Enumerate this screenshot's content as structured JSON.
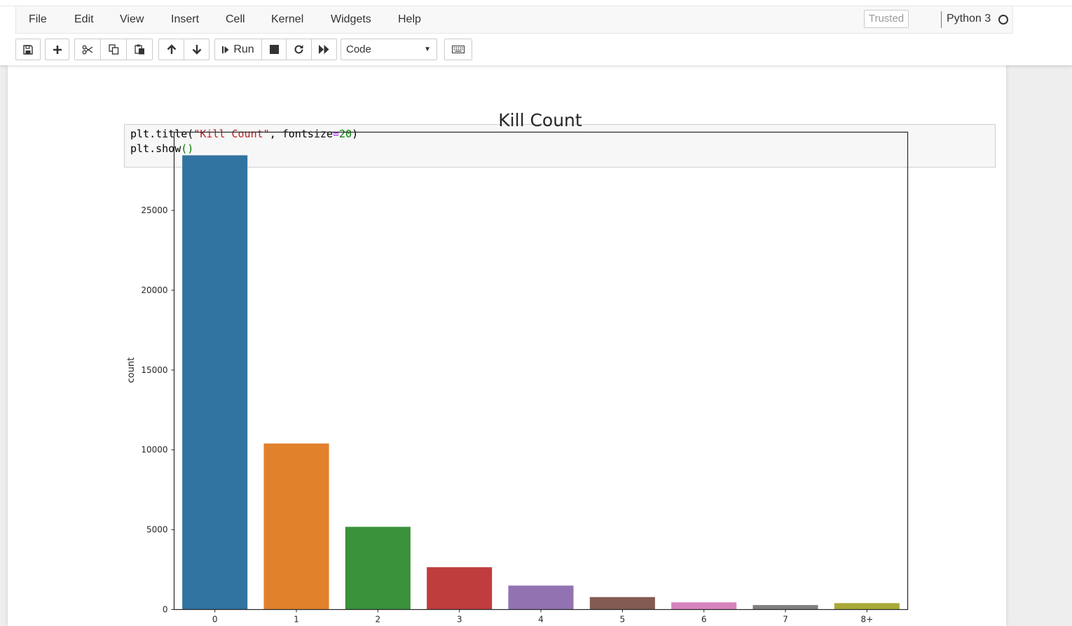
{
  "menubar": {
    "items": [
      "File",
      "Edit",
      "View",
      "Insert",
      "Cell",
      "Kernel",
      "Widgets",
      "Help"
    ],
    "trusted_label": "Trusted",
    "kernel_name": "Python 3"
  },
  "toolbar": {
    "run_label": "Run",
    "cell_type": "Code",
    "icons": [
      "save-icon",
      "plus-icon",
      "cut-icon",
      "copy-icon",
      "paste-icon",
      "arrow-up-icon",
      "arrow-down-icon",
      "step-icon",
      "stop-icon",
      "restart-icon",
      "fast-forward-icon",
      "keyboard-icon"
    ]
  },
  "code_cell": {
    "lines": [
      "plt.title(\"Kill Count\", fontsize=20)",
      "plt.show()"
    ]
  },
  "chart_data": {
    "type": "bar",
    "title": "Kill Count",
    "xlabel": "",
    "ylabel": "count",
    "categories": [
      "0",
      "1",
      "2",
      "3",
      "4",
      "5",
      "6",
      "7",
      "8+"
    ],
    "values": [
      28450,
      10400,
      5180,
      2650,
      1500,
      780,
      450,
      280,
      400
    ],
    "colors": [
      "#3274a1",
      "#e1812c",
      "#3a923a",
      "#c03d3e",
      "#9372b2",
      "#845b53",
      "#d684bd",
      "#7f7f7f",
      "#a9aa35"
    ],
    "yticks": [
      0,
      5000,
      10000,
      15000,
      20000,
      25000
    ],
    "ylim": [
      0,
      29900
    ],
    "grid": false
  }
}
